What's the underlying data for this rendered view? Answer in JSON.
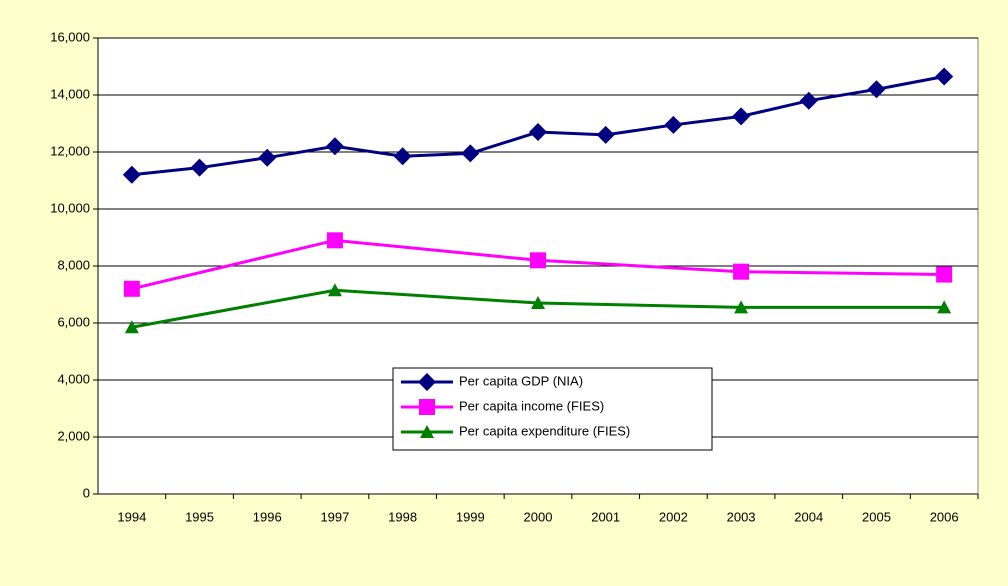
{
  "chart_data": {
    "type": "line",
    "xlim": [
      1993.5,
      2006.5
    ],
    "xticks": [
      1994,
      1995,
      1996,
      1997,
      1998,
      1999,
      2000,
      2001,
      2002,
      2003,
      2004,
      2005,
      2006
    ],
    "ylim": [
      0,
      16000
    ],
    "yticks": [
      0,
      {
        "value": 2000,
        "label": "2,000"
      },
      {
        "value": 4000,
        "label": "4,000"
      },
      {
        "value": 6000,
        "label": "6,000"
      },
      {
        "value": 8000,
        "label": "8,000"
      },
      {
        "value": 10000,
        "label": "10,000"
      },
      {
        "value": 12000,
        "label": "12,000"
      },
      {
        "value": 14000,
        "label": "14,000"
      },
      {
        "value": 16000,
        "label": "16,000"
      }
    ],
    "grid": true,
    "legend": "lower center",
    "series": [
      {
        "name": "Per capita GDP (NIA)",
        "color": "#000080",
        "marker": "diamond",
        "x": [
          1994,
          1995,
          1996,
          1997,
          1998,
          1999,
          2000,
          2001,
          2002,
          2003,
          2004,
          2005,
          2006
        ],
        "values": [
          11200,
          11450,
          11800,
          12200,
          11850,
          11950,
          12700,
          12600,
          12950,
          13250,
          13800,
          14200,
          14650
        ]
      },
      {
        "name": "Per capita income (FIES)",
        "color": "#ff00ff",
        "marker": "square",
        "x": [
          1994,
          1997,
          2000,
          2003,
          2006
        ],
        "values": [
          7200,
          8900,
          8200,
          7800,
          7700
        ]
      },
      {
        "name": "Per capita expenditure (FIES)",
        "color": "#008000",
        "marker": "triangle",
        "x": [
          1994,
          1997,
          2000,
          2003,
          2006
        ],
        "values": [
          5850,
          7150,
          6700,
          6550,
          6550
        ]
      }
    ]
  }
}
